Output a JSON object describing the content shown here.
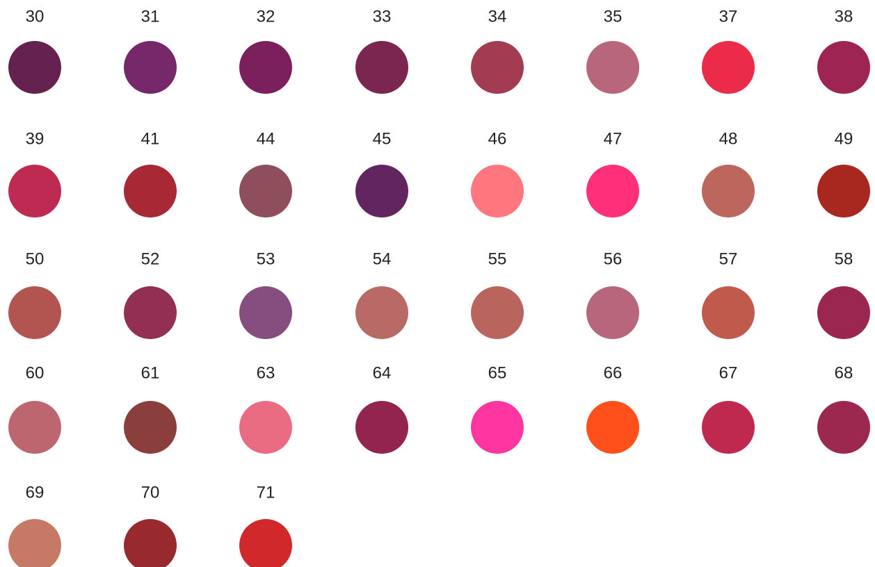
{
  "swatches": [
    {
      "label": "30",
      "color": "#65214f"
    },
    {
      "label": "31",
      "color": "#76286a"
    },
    {
      "label": "32",
      "color": "#7c205d"
    },
    {
      "label": "33",
      "color": "#7b2651"
    },
    {
      "label": "34",
      "color": "#a23c53"
    },
    {
      "label": "35",
      "color": "#b7667c"
    },
    {
      "label": "37",
      "color": "#ec2a4a"
    },
    {
      "label": "38",
      "color": "#9e2553"
    },
    {
      "label": "39",
      "color": "#bf2a52"
    },
    {
      "label": "41",
      "color": "#a92835"
    },
    {
      "label": "44",
      "color": "#8e4e5c"
    },
    {
      "label": "45",
      "color": "#632560"
    },
    {
      "label": "46",
      "color": "#ff777e"
    },
    {
      "label": "47",
      "color": "#ff2f7a"
    },
    {
      "label": "48",
      "color": "#bc665e"
    },
    {
      "label": "49",
      "color": "#a8271f"
    },
    {
      "label": "50",
      "color": "#b2544f"
    },
    {
      "label": "52",
      "color": "#922f52"
    },
    {
      "label": "53",
      "color": "#864e7e"
    },
    {
      "label": "54",
      "color": "#ba6a66"
    },
    {
      "label": "55",
      "color": "#b9645c"
    },
    {
      "label": "56",
      "color": "#b7667b"
    },
    {
      "label": "57",
      "color": "#bf5a4d"
    },
    {
      "label": "58",
      "color": "#9b2650"
    },
    {
      "label": "60",
      "color": "#bd6670"
    },
    {
      "label": "61",
      "color": "#8a3f3d"
    },
    {
      "label": "63",
      "color": "#ea6c83"
    },
    {
      "label": "64",
      "color": "#93244f"
    },
    {
      "label": "65",
      "color": "#ff35a2"
    },
    {
      "label": "66",
      "color": "#ff501c"
    },
    {
      "label": "67",
      "color": "#c0294f"
    },
    {
      "label": "68",
      "color": "#9c2850"
    },
    {
      "label": "69",
      "color": "#c67a66"
    },
    {
      "label": "70",
      "color": "#982a2f"
    },
    {
      "label": "71",
      "color": "#d0282b"
    }
  ]
}
